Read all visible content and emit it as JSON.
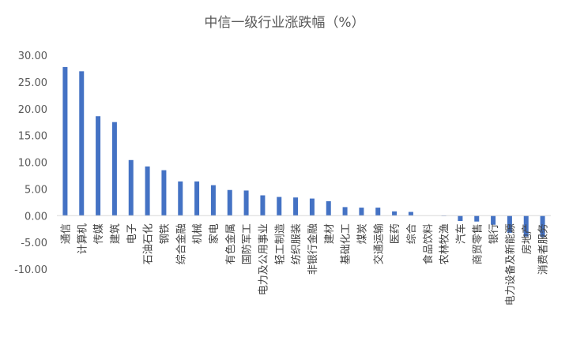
{
  "chart_data": {
    "type": "bar",
    "title": "中信一级行业涨跌幅（%）",
    "xlabel": "",
    "ylabel": "",
    "ylim": [
      -10,
      30
    ],
    "yticks": [
      "30.00",
      "25.00",
      "20.00",
      "15.00",
      "10.00",
      "5.00",
      "0.00",
      "-5.00",
      "-10.00"
    ],
    "grid": false,
    "legend": "none",
    "bar_color": "#4472C4",
    "categories": [
      "通信",
      "计算机",
      "传媒",
      "建筑",
      "电子",
      "石油石化",
      "钢铁",
      "综合金融",
      "机械",
      "家电",
      "有色金属",
      "国防军工",
      "电力及公用事业",
      "轻工制造",
      "纺织服装",
      "非银行金融",
      "建材",
      "基础化工",
      "煤炭",
      "交通运输",
      "医药",
      "综合",
      "食品饮料",
      "农林牧渔",
      "汽车",
      "商贸零售",
      "银行",
      "电力设备及新能源",
      "房地产",
      "消费者服务"
    ],
    "values": [
      27.8,
      27.0,
      18.6,
      17.5,
      10.4,
      9.2,
      8.5,
      6.4,
      6.4,
      5.7,
      4.8,
      4.7,
      3.8,
      3.5,
      3.4,
      3.2,
      2.7,
      1.6,
      1.5,
      1.5,
      0.8,
      0.7,
      0.0,
      -0.1,
      -1.0,
      -1.1,
      -1.7,
      -3.2,
      -3.9,
      -4.0
    ]
  }
}
